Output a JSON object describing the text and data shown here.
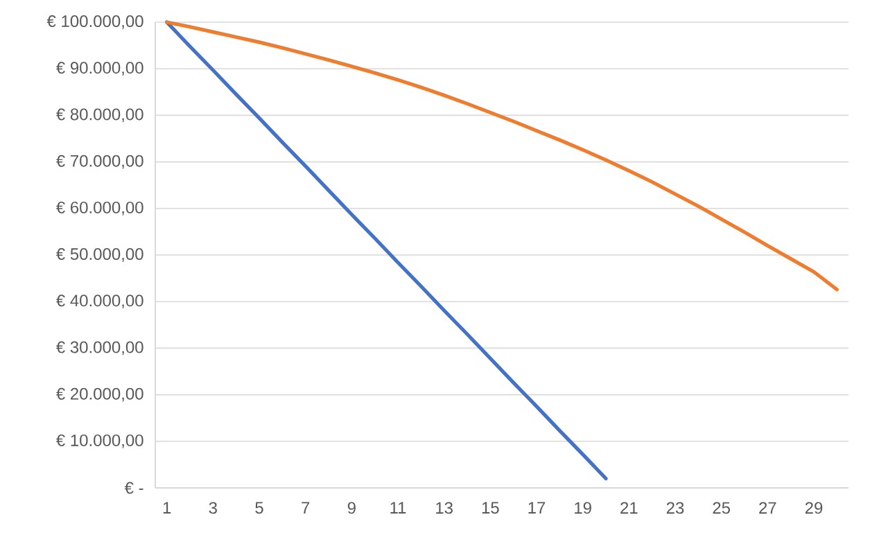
{
  "chart_data": {
    "type": "line",
    "categories": [
      "1",
      null,
      "3",
      null,
      "5",
      null,
      "7",
      null,
      "9",
      null,
      "11",
      null,
      "13",
      null,
      "15",
      null,
      "17",
      null,
      "19",
      null,
      "21",
      null,
      "23",
      null,
      "25",
      null,
      "27",
      null,
      "29",
      null
    ],
    "series": [
      {
        "color": "#4472c4",
        "values": [
          100000,
          94800,
          89700,
          84500,
          79400,
          74200,
          69100,
          63900,
          58700,
          53600,
          48400,
          43300,
          38100,
          33000,
          27800,
          22600,
          17500,
          12300,
          7200,
          2000,
          null,
          null,
          null,
          null,
          null,
          null,
          null,
          null,
          null,
          null
        ]
      },
      {
        "color": "#ed7d31",
        "values": [
          100000,
          99000,
          97900,
          96800,
          95700,
          94500,
          93200,
          91900,
          90500,
          89100,
          87600,
          86000,
          84300,
          82500,
          80600,
          78700,
          76700,
          74700,
          72600,
          70400,
          68100,
          65700,
          63100,
          60500,
          57700,
          54900,
          52000,
          49200,
          46400,
          42600
        ]
      }
    ],
    "ylim": [
      0,
      100000
    ],
    "yticks": [
      {
        "value": 0,
        "label": "€ -"
      },
      {
        "value": 10000,
        "label": "€ 10.000,00"
      },
      {
        "value": 20000,
        "label": "€ 20.000,00"
      },
      {
        "value": 30000,
        "label": "€ 30.000,00"
      },
      {
        "value": 40000,
        "label": "€ 40.000,00"
      },
      {
        "value": 50000,
        "label": "€ 50.000,00"
      },
      {
        "value": 60000,
        "label": "€ 60.000,00"
      },
      {
        "value": 70000,
        "label": "€ 70.000,00"
      },
      {
        "value": 80000,
        "label": "€ 80.000,00"
      },
      {
        "value": 90000,
        "label": "€ 90.000,00"
      },
      {
        "value": 100000,
        "label": "€ 100.000,00"
      }
    ],
    "grid": "y",
    "line_style": "solid"
  }
}
